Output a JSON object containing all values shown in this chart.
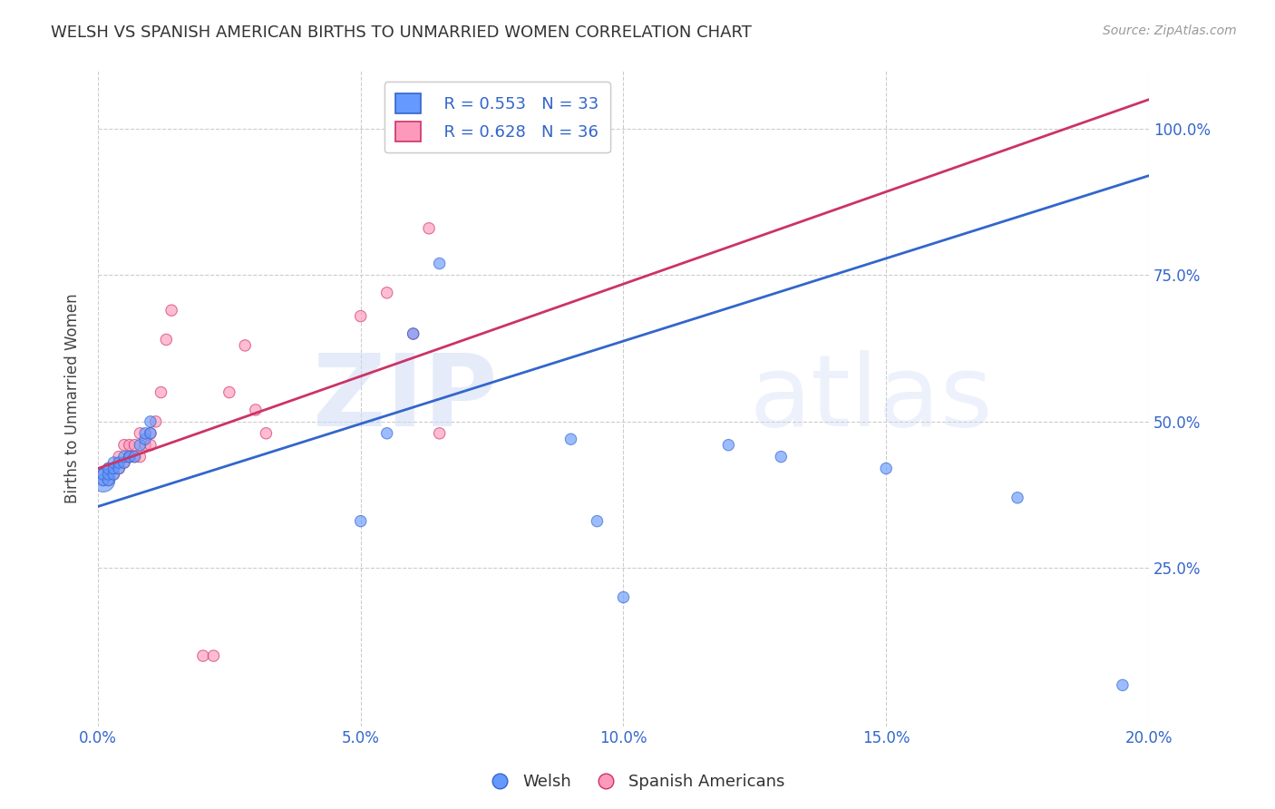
{
  "title": "WELSH VS SPANISH AMERICAN BIRTHS TO UNMARRIED WOMEN CORRELATION CHART",
  "source": "Source: ZipAtlas.com",
  "ylabel": "Births to Unmarried Women",
  "xlim": [
    0.0,
    0.2
  ],
  "ylim": [
    -0.02,
    1.1
  ],
  "ytick_values": [
    0.25,
    0.5,
    0.75,
    1.0
  ],
  "ytick_labels": [
    "25.0%",
    "50.0%",
    "75.0%",
    "100.0%"
  ],
  "xtick_values": [
    0.0,
    0.05,
    0.1,
    0.15,
    0.2
  ],
  "xtick_labels": [
    "0.0%",
    "5.0%",
    "10.0%",
    "15.0%",
    "20.0%"
  ],
  "welsh_color": "#6699ff",
  "spanish_color": "#ff99bb",
  "trendline_welsh_color": "#3366cc",
  "trendline_spanish_color": "#cc3366",
  "welsh_R": 0.553,
  "welsh_N": 33,
  "spanish_R": 0.628,
  "spanish_N": 36,
  "watermark": "ZIPatlas",
  "background_color": "#ffffff",
  "grid_color": "#cccccc",
  "welsh_trendline_x0": 0.0,
  "welsh_trendline_y0": 0.355,
  "welsh_trendline_x1": 0.2,
  "welsh_trendline_y1": 0.92,
  "spanish_trendline_x0": 0.0,
  "spanish_trendline_y0": 0.42,
  "spanish_trendline_x1": 0.2,
  "spanish_trendline_y1": 1.05,
  "welsh_x": [
    0.001,
    0.001,
    0.001,
    0.002,
    0.002,
    0.002,
    0.003,
    0.003,
    0.003,
    0.004,
    0.004,
    0.005,
    0.005,
    0.006,
    0.006,
    0.007,
    0.008,
    0.009,
    0.009,
    0.01,
    0.01,
    0.05,
    0.055,
    0.06,
    0.065,
    0.09,
    0.095,
    0.1,
    0.12,
    0.13,
    0.15,
    0.175,
    0.195
  ],
  "welsh_y": [
    0.4,
    0.4,
    0.41,
    0.4,
    0.41,
    0.42,
    0.41,
    0.42,
    0.43,
    0.42,
    0.43,
    0.43,
    0.44,
    0.44,
    0.44,
    0.44,
    0.46,
    0.47,
    0.48,
    0.48,
    0.5,
    0.33,
    0.48,
    0.65,
    0.77,
    0.47,
    0.33,
    0.2,
    0.46,
    0.44,
    0.42,
    0.37,
    0.05
  ],
  "welsh_sizes": [
    350,
    80,
    80,
    80,
    80,
    80,
    80,
    80,
    80,
    80,
    80,
    80,
    80,
    80,
    80,
    80,
    80,
    80,
    80,
    80,
    80,
    80,
    80,
    80,
    80,
    80,
    80,
    80,
    80,
    80,
    80,
    80,
    80
  ],
  "spanish_x": [
    0.001,
    0.001,
    0.002,
    0.002,
    0.003,
    0.003,
    0.004,
    0.004,
    0.005,
    0.005,
    0.006,
    0.006,
    0.007,
    0.007,
    0.008,
    0.008,
    0.009,
    0.01,
    0.01,
    0.011,
    0.012,
    0.013,
    0.014,
    0.02,
    0.022,
    0.025,
    0.028,
    0.03,
    0.032,
    0.05,
    0.055,
    0.06,
    0.063,
    0.065,
    0.07,
    0.08
  ],
  "spanish_y": [
    0.4,
    0.41,
    0.4,
    0.42,
    0.41,
    0.42,
    0.42,
    0.44,
    0.43,
    0.46,
    0.44,
    0.46,
    0.44,
    0.46,
    0.44,
    0.48,
    0.46,
    0.46,
    0.48,
    0.5,
    0.55,
    0.64,
    0.69,
    0.1,
    0.1,
    0.55,
    0.63,
    0.52,
    0.48,
    0.68,
    0.72,
    0.65,
    0.83,
    0.48,
    1.0,
    1.0
  ],
  "spanish_sizes": [
    80,
    80,
    80,
    80,
    80,
    80,
    80,
    80,
    80,
    80,
    80,
    80,
    80,
    80,
    80,
    80,
    80,
    80,
    80,
    80,
    80,
    80,
    80,
    80,
    80,
    80,
    80,
    80,
    80,
    80,
    80,
    80,
    80,
    80,
    80,
    80
  ]
}
